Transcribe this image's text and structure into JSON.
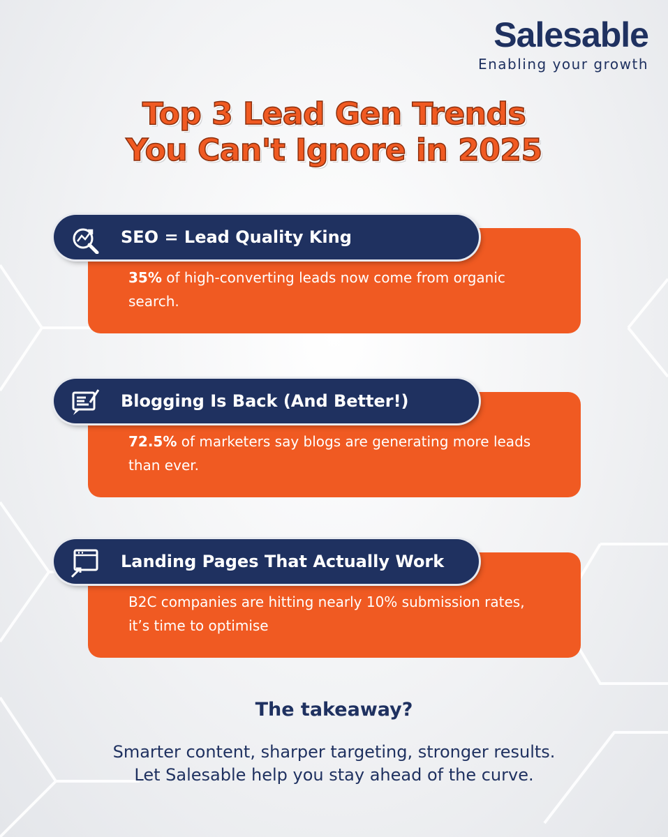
{
  "logo": {
    "name": "Salesable",
    "tagline": "Enabling your growth"
  },
  "title": {
    "lines": [
      "Top 3 Lead Gen Trends",
      "You Can't Ignore in 2025"
    ]
  },
  "trends": [
    {
      "heading": "SEO = Lead Quality King",
      "highlight": "35%",
      "text": " of high-converting leads now come from organic search."
    },
    {
      "heading": "Blogging Is Back (And Better!)",
      "highlight": "72.5%",
      "text": " of marketers say blogs are generating more leads than ever."
    },
    {
      "heading": "Landing Pages That Actually Work",
      "text": "B2C companies are hitting nearly 10% submission rates, it’s time to optimise"
    }
  ],
  "takeaway": {
    "heading": "The takeaway?",
    "lines": [
      "Smarter content, sharper targeting, stronger results.",
      "Let Salesable help you stay ahead of the curve."
    ]
  }
}
